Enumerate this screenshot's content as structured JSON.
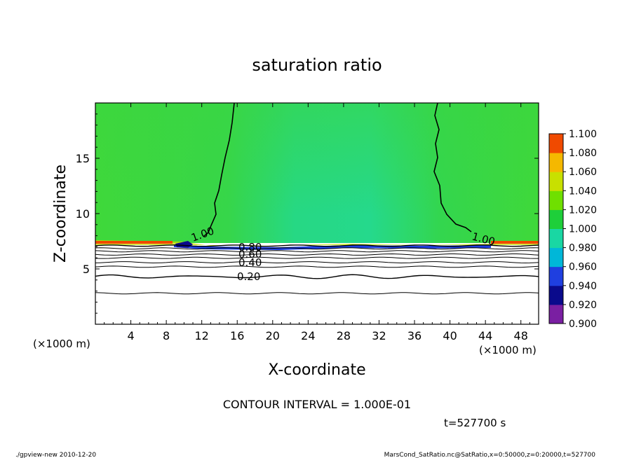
{
  "chart_data": {
    "type": "heatmap",
    "title": "saturation ratio",
    "xlabel": "X-coordinate",
    "ylabel": "Z-coordinate",
    "x_unit": "(×1000 m)",
    "y_unit": "(×1000 m)",
    "xlim": [
      0,
      50
    ],
    "ylim": [
      0,
      20
    ],
    "x_ticks": [
      4,
      8,
      12,
      16,
      20,
      24,
      28,
      32,
      36,
      40,
      44,
      48
    ],
    "y_ticks": [
      5,
      10,
      15
    ],
    "colorbar": {
      "levels": [
        "0.900",
        "0.920",
        "0.940",
        "0.960",
        "0.980",
        "1.000",
        "1.020",
        "1.040",
        "1.060",
        "1.080",
        "1.100"
      ],
      "colors": [
        "#7a1fa2",
        "#0a0a8c",
        "#1f3fe0",
        "#00b7d8",
        "#19d7a3",
        "#1ecf3a",
        "#6fe000",
        "#c8e000",
        "#f5b800",
        "#f04a00",
        "#ff8080"
      ]
    },
    "contour_labels": [
      "1.00",
      "1.00",
      "0.80",
      "0.60",
      "0.40",
      "0.20"
    ],
    "contour_interval_text": "CONTOUR INTERVAL = 1.000E-01",
    "time_text": "t=527700 s"
  },
  "footer": {
    "left": "./gpview-new   2010-12-20",
    "right": "MarsCond_SatRatio.nc@SatRatio,x=0:50000,z=0:20000,t=527700"
  },
  "colors": {
    "green": "#3dd93a",
    "saturated_green": "#1ecf3a",
    "teal_green": "#22d68c"
  }
}
